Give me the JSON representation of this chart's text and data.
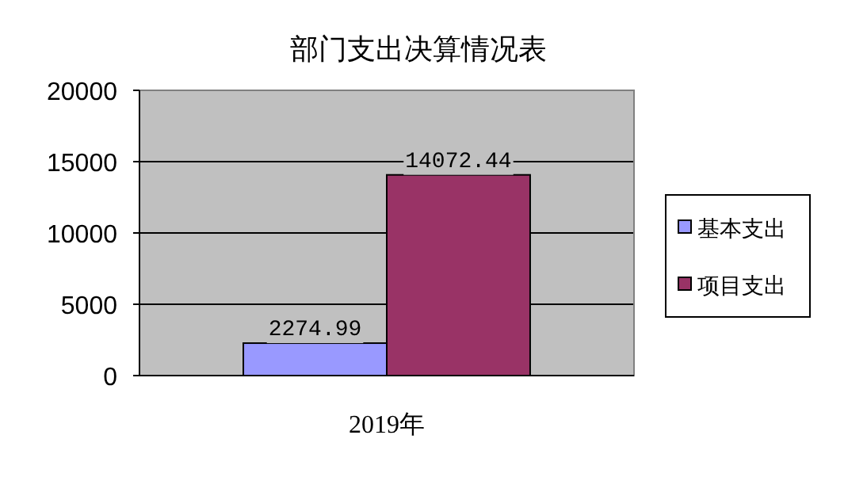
{
  "chart_data": {
    "type": "bar",
    "title": "部门支出决算情况表",
    "categories": [
      "2019年"
    ],
    "series": [
      {
        "name": "基本支出",
        "color": "#9999ff",
        "values": [
          2274.99
        ]
      },
      {
        "name": "项目支出",
        "color": "#993366",
        "values": [
          14072.44
        ]
      }
    ],
    "ylim": [
      0,
      20000
    ],
    "yticks": [
      0,
      5000,
      10000,
      15000,
      20000
    ],
    "grid": "y",
    "legend": "right",
    "data_labels": true
  }
}
